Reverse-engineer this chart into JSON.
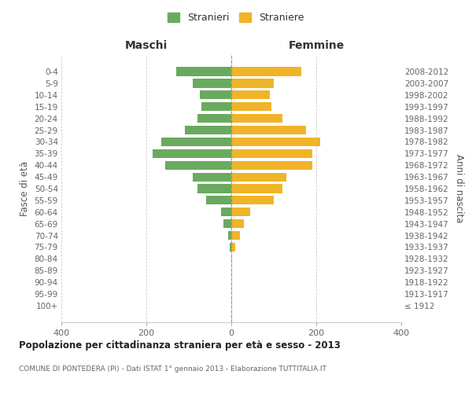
{
  "age_groups": [
    "100+",
    "95-99",
    "90-94",
    "85-89",
    "80-84",
    "75-79",
    "70-74",
    "65-69",
    "60-64",
    "55-59",
    "50-54",
    "45-49",
    "40-44",
    "35-39",
    "30-34",
    "25-29",
    "20-24",
    "15-19",
    "10-14",
    "5-9",
    "0-4"
  ],
  "birth_years": [
    "≤ 1912",
    "1913-1917",
    "1918-1922",
    "1923-1927",
    "1928-1932",
    "1933-1937",
    "1938-1942",
    "1943-1947",
    "1948-1952",
    "1953-1957",
    "1958-1962",
    "1963-1967",
    "1968-1972",
    "1973-1977",
    "1978-1982",
    "1983-1987",
    "1988-1992",
    "1993-1997",
    "1998-2002",
    "2003-2007",
    "2008-2012"
  ],
  "maschi": [
    0,
    0,
    0,
    0,
    0,
    4,
    8,
    18,
    25,
    60,
    80,
    90,
    155,
    185,
    165,
    110,
    80,
    70,
    75,
    90,
    130
  ],
  "femmine": [
    0,
    0,
    0,
    0,
    2,
    10,
    20,
    30,
    45,
    100,
    120,
    130,
    190,
    190,
    210,
    175,
    120,
    95,
    90,
    100,
    165
  ],
  "maschi_color": "#6aaa5f",
  "femmine_color": "#f0b429",
  "background_color": "#ffffff",
  "grid_color": "#cccccc",
  "title": "Popolazione per cittadinanza straniera per età e sesso - 2013",
  "subtitle": "COMUNE DI PONTEDERA (PI) - Dati ISTAT 1° gennaio 2013 - Elaborazione TUTTITALIA.IT",
  "label_maschi": "Maschi",
  "label_femmine": "Femmine",
  "ylabel_left": "Fasce di età",
  "ylabel_right": "Anni di nascita",
  "legend_stranieri": "Stranieri",
  "legend_straniere": "Straniere",
  "xlim": 400
}
